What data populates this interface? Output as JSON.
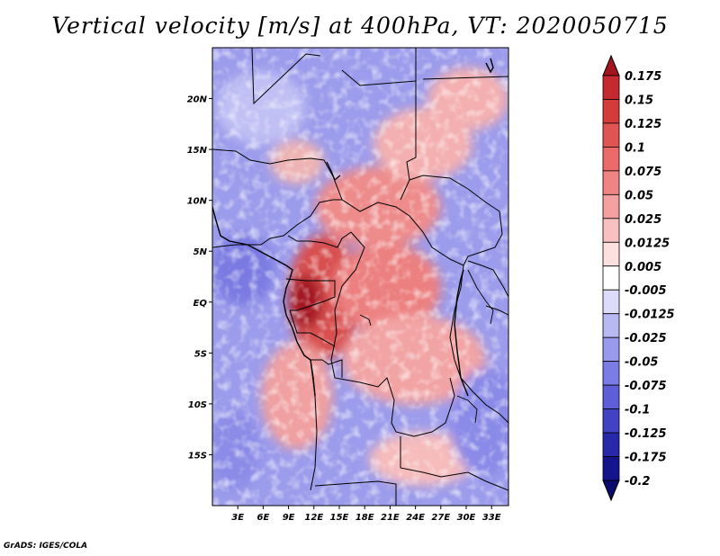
{
  "title": "Vertical velocity [m/s] at 400hPa, VT: 2020050715",
  "credit": "GrADS: IGES/COLA",
  "map": {
    "lon_range": [
      0,
      35
    ],
    "lat_range": [
      -20,
      25
    ],
    "lat_ticks": [
      {
        "value": 20,
        "label": "20N"
      },
      {
        "value": 15,
        "label": "15N"
      },
      {
        "value": 10,
        "label": "10N"
      },
      {
        "value": 5,
        "label": "5N"
      },
      {
        "value": 0,
        "label": "EQ"
      },
      {
        "value": -5,
        "label": "5S"
      },
      {
        "value": -10,
        "label": "10S"
      },
      {
        "value": -15,
        "label": "15S"
      }
    ],
    "lon_ticks": [
      {
        "value": 3,
        "label": "3E"
      },
      {
        "value": 6,
        "label": "6E"
      },
      {
        "value": 9,
        "label": "9E"
      },
      {
        "value": 12,
        "label": "12E"
      },
      {
        "value": 15,
        "label": "15E"
      },
      {
        "value": 18,
        "label": "18E"
      },
      {
        "value": 21,
        "label": "21E"
      },
      {
        "value": 24,
        "label": "24E"
      },
      {
        "value": 27,
        "label": "27E"
      },
      {
        "value": 30,
        "label": "30E"
      },
      {
        "value": 33,
        "label": "33E"
      }
    ]
  },
  "colorbar": {
    "labels": [
      "0.175",
      "0.15",
      "0.125",
      "0.1",
      "0.075",
      "0.05",
      "0.025",
      "0.0125",
      "0.005",
      "-0.005",
      "-0.0125",
      "-0.025",
      "-0.05",
      "-0.075",
      "-0.1",
      "-0.125",
      "-0.175",
      "-0.2"
    ],
    "colors": [
      "#a4141e",
      "#c42a30",
      "#d43c3c",
      "#e05454",
      "#ec6a6a",
      "#f08484",
      "#f4a0a0",
      "#f8c0c0",
      "#fce0e0",
      "#ffffff",
      "#dcdcfa",
      "#b8b8f2",
      "#9a9aec",
      "#7c7ce6",
      "#5e5ed8",
      "#4242c4",
      "#2828aa",
      "#14148c",
      "#0a0a6e"
    ]
  }
}
